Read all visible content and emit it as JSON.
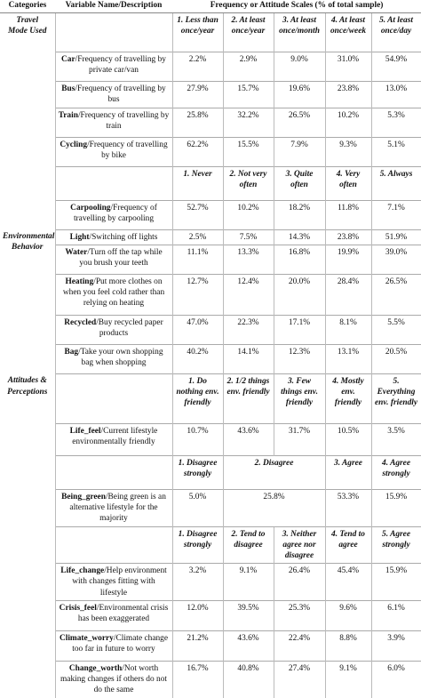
{
  "headers": {
    "categories": "Categories",
    "variable": "Variable Name/Description",
    "frequency": "Frequency or Attitude Scales (% of total sample)"
  },
  "travel": {
    "category_line1": "Travel",
    "category_line2": "Mode Used",
    "scale": [
      "1. Less than once/year",
      "2. At least once/year",
      "3. At least once/month",
      "4. At least once/week",
      "5. At least once/day"
    ],
    "rows": [
      {
        "name": "Car",
        "desc": "/Frequency of travelling by private car/van",
        "values": [
          "2.2%",
          "2.9%",
          "9.0%",
          "31.0%",
          "54.9%"
        ]
      },
      {
        "name": "Bus",
        "desc": "/Frequency of travelling by bus",
        "values": [
          "27.9%",
          "15.7%",
          "19.6%",
          "23.8%",
          "13.0%"
        ]
      },
      {
        "name": "Train",
        "desc": "/Frequency of travelling by train",
        "values": [
          "25.8%",
          "32.2%",
          "26.5%",
          "10.2%",
          "5.3%"
        ]
      },
      {
        "name": "Cycling",
        "desc": "/Frequency of travelling by bike",
        "values": [
          "62.2%",
          "15.5%",
          "7.9%",
          "9.3%",
          "5.1%"
        ]
      }
    ],
    "scale2": [
      "1. Never",
      "2. Not very often",
      "3. Quite often",
      "4. Very often",
      "5. Always"
    ],
    "carpool": {
      "name": "Carpooling",
      "desc": "/Frequency of travelling by carpooling",
      "values": [
        "52.7%",
        "10.2%",
        "18.2%",
        "11.8%",
        "7.1%"
      ]
    }
  },
  "env": {
    "category_line1": "Environmental",
    "category_line2": "Behavior",
    "rows": [
      {
        "name": "Light",
        "desc": "/Switching off lights",
        "values": [
          "2.5%",
          "7.5%",
          "14.3%",
          "23.8%",
          "51.9%"
        ]
      },
      {
        "name": "Water",
        "desc": "/Turn off the tap while you brush your teeth",
        "values": [
          "11.1%",
          "13.3%",
          "16.8%",
          "19.9%",
          "39.0%"
        ]
      },
      {
        "name": "Heating",
        "desc": "/Put more clothes on when you feel cold rather than relying on heating",
        "values": [
          "12.7%",
          "12.4%",
          "20.0%",
          "28.4%",
          "26.5%"
        ]
      },
      {
        "name": "Recycled",
        "desc": "/Buy recycled paper products",
        "values": [
          "47.0%",
          "22.3%",
          "17.1%",
          "8.1%",
          "5.5%"
        ]
      },
      {
        "name": "Bag",
        "desc": "/Take your own shopping bag when shopping",
        "values": [
          "40.2%",
          "14.1%",
          "12.3%",
          "13.1%",
          "20.5%"
        ]
      }
    ]
  },
  "att": {
    "category_line1": "Attitudes &",
    "category_line2": "Perceptions",
    "scale1": [
      "1. Do nothing env. friendly",
      "2. 1/2 things env. friendly",
      "3. Few things env. friendly",
      "4. Mostly env. friendly",
      "5. Everything env. friendly"
    ],
    "life_feel": {
      "name": "Life_feel",
      "desc": "/Current lifestyle environmentally friendly",
      "values": [
        "10.7%",
        "43.6%",
        "31.7%",
        "10.5%",
        "3.5%"
      ]
    },
    "scale2": [
      "1. Disagree strongly",
      "2. Disagree",
      "3. Agree",
      "4. Agree strongly"
    ],
    "being_green": {
      "name": "Being_green",
      "desc": "/Being green is an alternative lifestyle for the majority",
      "values": [
        "5.0%",
        "25.8%",
        "53.3%",
        "15.9%"
      ]
    },
    "scale3": [
      "1. Disagree strongly",
      "2. Tend to disagree",
      "3. Neither agree nor disagree",
      "4. Tend to agree",
      "5. Agree strongly"
    ],
    "rows": [
      {
        "name": "Life_change",
        "desc": "/Help environment with changes fitting with lifestyle",
        "values": [
          "3.2%",
          "9.1%",
          "26.4%",
          "45.4%",
          "15.9%"
        ]
      },
      {
        "name": "Crisis_feel",
        "desc": "/Environmental crisis has been exaggerated",
        "values": [
          "12.0%",
          "39.5%",
          "25.3%",
          "9.6%",
          "6.1%"
        ]
      },
      {
        "name": "Climate_worry",
        "desc": "/Climate change too far in future to worry",
        "values": [
          "21.2%",
          "43.6%",
          "22.4%",
          "8.8%",
          "3.9%"
        ]
      },
      {
        "name": "Change_worth",
        "desc": "/Not worth making changes if others do not do the same",
        "values": [
          "16.7%",
          "40.8%",
          "27.4%",
          "9.1%",
          "6.0%"
        ]
      }
    ]
  }
}
